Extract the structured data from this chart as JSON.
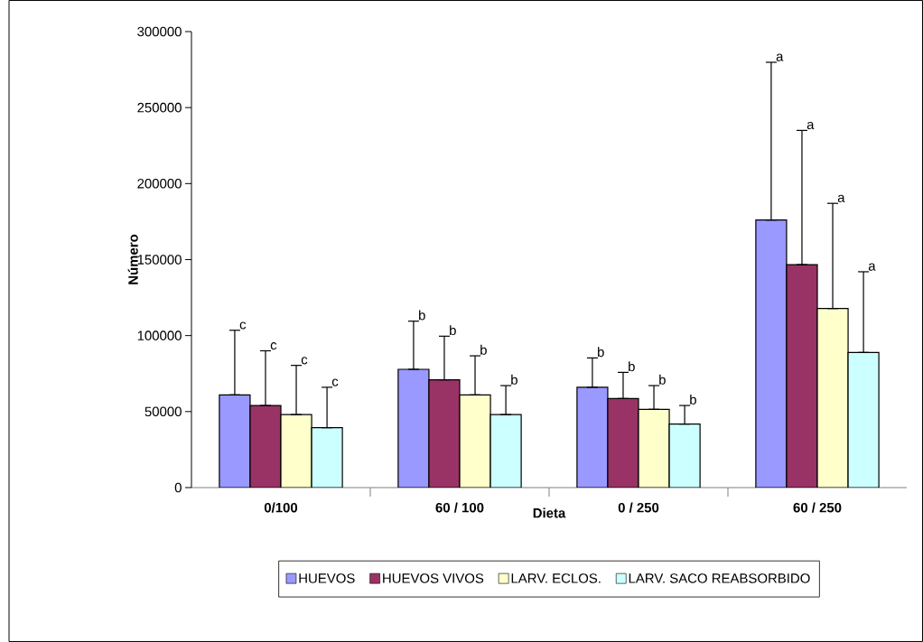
{
  "chart_data": {
    "type": "bar",
    "xlabel": "Dieta",
    "ylabel": "Número",
    "categories": [
      "0/100",
      "60 / 100",
      "0 / 250",
      "60 / 250"
    ],
    "series": [
      {
        "name": "HUEVOS",
        "color": "#9999ff",
        "values": [
          61000,
          77800,
          66000,
          176000
        ],
        "errors": [
          [
            61000,
            103500
          ],
          [
            77800,
            109500
          ],
          [
            66000,
            85300
          ],
          [
            176000,
            279800
          ]
        ]
      },
      {
        "name": "HUEVOS VIVOS",
        "color": "#993366",
        "values": [
          54000,
          70900,
          58600,
          146700
        ],
        "errors": [
          [
            54000,
            90000
          ],
          [
            70900,
            99600
          ],
          [
            58600,
            75800
          ],
          [
            146700,
            235000
          ]
        ]
      },
      {
        "name": "LARV. ECLOS.",
        "color": "#ffffcc",
        "values": [
          48000,
          61000,
          51500,
          117800
        ],
        "errors": [
          [
            48000,
            80400
          ],
          [
            61000,
            86700
          ],
          [
            51500,
            67100
          ],
          [
            117800,
            187000
          ]
        ]
      },
      {
        "name": "LARV. SACO REABSORBIDO",
        "color": "#ccffff",
        "values": [
          39400,
          48000,
          41800,
          88900
        ],
        "errors": [
          [
            39400,
            66000
          ],
          [
            48000,
            67100
          ],
          [
            41800,
            54000
          ],
          [
            88900,
            142000
          ]
        ]
      }
    ],
    "annotations": [
      "c",
      "c",
      "c",
      "c",
      "b",
      "b",
      "b",
      "b",
      "b",
      "b",
      "b",
      "b",
      "a",
      "a",
      "a",
      "a"
    ],
    "ylim": [
      0,
      300000
    ],
    "yticks": [
      0,
      50000,
      100000,
      150000,
      200000,
      250000,
      300000
    ],
    "legend": "bottom",
    "grid": false
  }
}
